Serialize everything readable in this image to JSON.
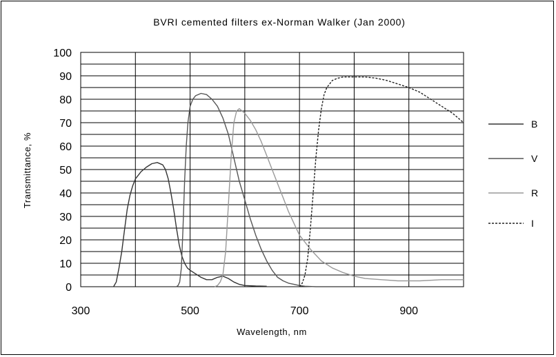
{
  "chart_data": {
    "type": "line",
    "title": "BVRI cemented filters ex-Norman Walker (Jan 2000)",
    "xlabel": "Wavelength, nm",
    "ylabel": "Transmittance, %",
    "xlim": [
      300,
      1000
    ],
    "ylim": [
      0,
      100
    ],
    "x_ticks": [
      300,
      500,
      700,
      900
    ],
    "y_ticks": [
      0,
      10,
      20,
      30,
      40,
      50,
      60,
      70,
      80,
      90,
      100
    ],
    "grid": true,
    "legend_position": "right",
    "series": [
      {
        "name": "B",
        "color": "#333333",
        "style": "solid",
        "points": [
          [
            360,
            0
          ],
          [
            365,
            2
          ],
          [
            370,
            8
          ],
          [
            375,
            15
          ],
          [
            380,
            24
          ],
          [
            385,
            33
          ],
          [
            390,
            39
          ],
          [
            395,
            43
          ],
          [
            400,
            46
          ],
          [
            410,
            49
          ],
          [
            420,
            51
          ],
          [
            430,
            52.5
          ],
          [
            440,
            53
          ],
          [
            450,
            52
          ],
          [
            455,
            50
          ],
          [
            460,
            46
          ],
          [
            465,
            40
          ],
          [
            470,
            33
          ],
          [
            475,
            25
          ],
          [
            480,
            18
          ],
          [
            485,
            13
          ],
          [
            490,
            10
          ],
          [
            495,
            8
          ],
          [
            500,
            7
          ],
          [
            510,
            5.5
          ],
          [
            520,
            4
          ],
          [
            530,
            3
          ],
          [
            540,
            3
          ],
          [
            550,
            4
          ],
          [
            560,
            4.5
          ],
          [
            570,
            3.5
          ],
          [
            580,
            2
          ],
          [
            590,
            1
          ],
          [
            600,
            0.5
          ],
          [
            620,
            0.3
          ],
          [
            640,
            0.2
          ]
        ]
      },
      {
        "name": "V",
        "color": "#555555",
        "style": "solid",
        "points": [
          [
            475,
            0
          ],
          [
            478,
            0.5
          ],
          [
            481,
            2
          ],
          [
            484,
            8
          ],
          [
            487,
            25
          ],
          [
            490,
            45
          ],
          [
            493,
            60
          ],
          [
            496,
            70
          ],
          [
            500,
            77
          ],
          [
            505,
            80
          ],
          [
            510,
            81.5
          ],
          [
            520,
            82.5
          ],
          [
            530,
            82
          ],
          [
            540,
            80
          ],
          [
            550,
            77
          ],
          [
            560,
            72
          ],
          [
            570,
            65
          ],
          [
            580,
            55
          ],
          [
            590,
            45
          ],
          [
            600,
            37
          ],
          [
            610,
            29
          ],
          [
            620,
            22
          ],
          [
            630,
            16
          ],
          [
            640,
            11
          ],
          [
            650,
            7
          ],
          [
            660,
            4
          ],
          [
            670,
            2.5
          ],
          [
            680,
            1.5
          ],
          [
            690,
            1
          ],
          [
            700,
            0.5
          ],
          [
            710,
            0.2
          ],
          [
            730,
            0
          ]
        ]
      },
      {
        "name": "R",
        "color": "#999999",
        "style": "solid",
        "points": [
          [
            545,
            0
          ],
          [
            550,
            0.5
          ],
          [
            555,
            2
          ],
          [
            560,
            5
          ],
          [
            565,
            15
          ],
          [
            570,
            35
          ],
          [
            575,
            55
          ],
          [
            580,
            70
          ],
          [
            585,
            75
          ],
          [
            590,
            76
          ],
          [
            600,
            74
          ],
          [
            610,
            71
          ],
          [
            620,
            67
          ],
          [
            630,
            62
          ],
          [
            640,
            56
          ],
          [
            650,
            50
          ],
          [
            660,
            44
          ],
          [
            670,
            38
          ],
          [
            680,
            32
          ],
          [
            690,
            27
          ],
          [
            700,
            22
          ],
          [
            720,
            16
          ],
          [
            740,
            11
          ],
          [
            760,
            8
          ],
          [
            780,
            6
          ],
          [
            800,
            4.5
          ],
          [
            820,
            3.5
          ],
          [
            850,
            3
          ],
          [
            880,
            2.5
          ],
          [
            920,
            2.5
          ],
          [
            960,
            3
          ],
          [
            1000,
            3
          ]
        ]
      },
      {
        "name": "I",
        "color": "#222222",
        "style": "dashed",
        "points": [
          [
            700,
            0
          ],
          [
            705,
            1.5
          ],
          [
            710,
            5
          ],
          [
            715,
            12
          ],
          [
            720,
            25
          ],
          [
            725,
            40
          ],
          [
            730,
            55
          ],
          [
            735,
            67
          ],
          [
            740,
            76
          ],
          [
            745,
            82
          ],
          [
            750,
            85
          ],
          [
            760,
            88
          ],
          [
            770,
            89
          ],
          [
            780,
            89.5
          ],
          [
            790,
            89.5
          ],
          [
            800,
            89.5
          ],
          [
            820,
            89.5
          ],
          [
            840,
            89
          ],
          [
            860,
            88
          ],
          [
            880,
            86.5
          ],
          [
            900,
            85
          ],
          [
            920,
            83
          ],
          [
            940,
            80
          ],
          [
            960,
            77
          ],
          [
            980,
            74
          ],
          [
            1000,
            70
          ]
        ]
      }
    ]
  }
}
